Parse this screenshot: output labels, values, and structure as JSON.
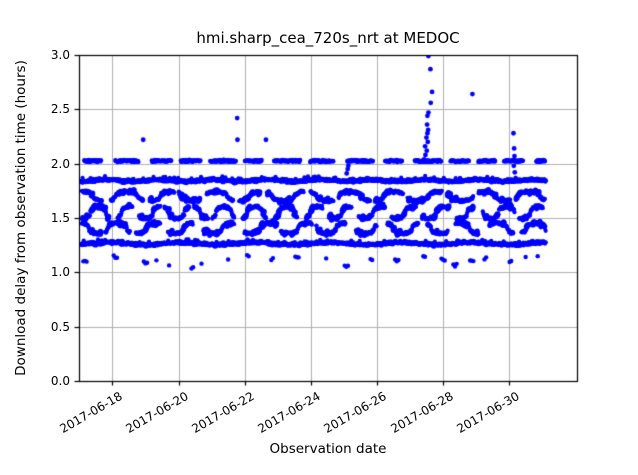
{
  "chart_data": {
    "type": "scatter",
    "title": "hmi.sharp_cea_720s_nrt at MEDOC",
    "xlabel": "Observation date",
    "ylabel": "Download delay from observation time (hours)",
    "marker_color": "#0000ff",
    "grid": true,
    "grid_color": "#b0b0b0",
    "axis_color": "#000000",
    "background_color": "#ffffff",
    "ylim": [
      0.0,
      3.0
    ],
    "y_ticks": [
      0.0,
      0.5,
      1.0,
      1.5,
      2.0,
      2.5,
      3.0
    ],
    "y_tick_labels": [
      "0.0",
      "0.5",
      "1.0",
      "1.5",
      "2.0",
      "2.5",
      "3.0"
    ],
    "x_domain_days": [
      16.99,
      32.04
    ],
    "x_tick_days": [
      18,
      20,
      22,
      24,
      26,
      28,
      30
    ],
    "x_tick_labels": [
      "2017-06-18",
      "2017-06-20",
      "2017-06-22",
      "2017-06-24",
      "2017-06-26",
      "2017-06-28",
      "2017-06-30"
    ],
    "x_data_range_days": [
      17.08,
      31.1
    ],
    "seed": 7,
    "marker_radius": 2.1,
    "outlier_marker_radius": 2.4,
    "bands": [
      {
        "name": "delay-2.03h-dashed",
        "style": "dashed",
        "level": 2.025,
        "x_start": 17.15,
        "x_end": 31.08,
        "dash": 0.66,
        "gap": 0.34,
        "jitter": 0.011,
        "step": 0.013
      },
      {
        "name": "delay-1.85h-solid",
        "style": "solid",
        "level": 1.845,
        "x_start": 17.08,
        "x_end": 31.1,
        "jitter": 0.013,
        "wave_amp": 0.008,
        "wave_period": 1.6,
        "step": 0.009
      },
      {
        "name": "delay-1.70h-wavy",
        "style": "meander",
        "level": 1.7,
        "x_start": 17.08,
        "x_end": 31.1,
        "amp": 0.042,
        "period": 1.35,
        "jitter": 0.016,
        "step": 0.012,
        "seg": 0.85,
        "seg_gap": 0.22
      },
      {
        "name": "delay-1.55h-wavy",
        "style": "meander",
        "level": 1.55,
        "x_start": 17.08,
        "x_end": 31.1,
        "amp": 0.055,
        "period": 0.95,
        "jitter": 0.018,
        "step": 0.012,
        "seg": 0.7,
        "seg_gap": 0.2
      },
      {
        "name": "delay-1.40h-wavy",
        "style": "meander",
        "level": 1.405,
        "x_start": 17.08,
        "x_end": 31.1,
        "amp": 0.048,
        "period": 1.15,
        "jitter": 0.017,
        "step": 0.012,
        "seg": 0.75,
        "seg_gap": 0.22
      },
      {
        "name": "delay-1.27h-solid",
        "style": "solid",
        "level": 1.265,
        "x_start": 17.08,
        "x_end": 31.1,
        "jitter": 0.015,
        "wave_amp": 0.01,
        "wave_period": 2.2,
        "step": 0.0095
      },
      {
        "name": "delay-1.1h-sparse",
        "style": "sparse",
        "x_start": 17.12,
        "x_end": 31.05,
        "y_min": 1.045,
        "y_max": 1.15,
        "gap_min": 0.3,
        "gap_max": 1.0,
        "cluster_min": 1,
        "cluster_max": 3
      }
    ],
    "outliers": [
      [
        18.93,
        2.22
      ],
      [
        21.77,
        2.42
      ],
      [
        21.78,
        2.22
      ],
      [
        22.64,
        2.22
      ],
      [
        25.08,
        1.91
      ],
      [
        25.11,
        1.95
      ],
      [
        25.13,
        1.98
      ],
      [
        27.42,
        2.04
      ],
      [
        27.46,
        2.08
      ],
      [
        27.5,
        2.12
      ],
      [
        27.45,
        2.16
      ],
      [
        27.53,
        2.2
      ],
      [
        27.49,
        2.24
      ],
      [
        27.52,
        2.28
      ],
      [
        27.54,
        2.31
      ],
      [
        27.51,
        2.36
      ],
      [
        27.52,
        2.44
      ],
      [
        27.55,
        2.47
      ],
      [
        27.62,
        2.56
      ],
      [
        27.66,
        2.66
      ],
      [
        27.61,
        2.87
      ],
      [
        27.55,
        2.99
      ],
      [
        28.88,
        2.64
      ],
      [
        30.12,
        2.28
      ],
      [
        30.14,
        2.14
      ],
      [
        30.15,
        2.07
      ],
      [
        30.13,
        1.98
      ],
      [
        30.16,
        1.92
      ]
    ]
  }
}
